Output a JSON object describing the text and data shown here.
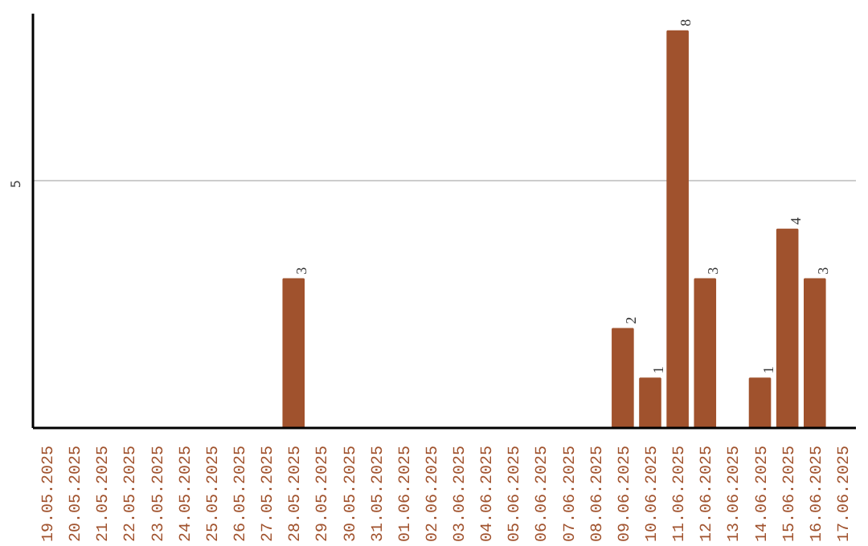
{
  "chart_data": {
    "type": "bar",
    "categories": [
      "19.05.2025",
      "20.05.2025",
      "21.05.2025",
      "22.05.2025",
      "23.05.2025",
      "24.05.2025",
      "25.05.2025",
      "26.05.2025",
      "27.05.2025",
      "28.05.2025",
      "29.05.2025",
      "30.05.2025",
      "31.05.2025",
      "01.06.2025",
      "02.06.2025",
      "03.06.2025",
      "04.06.2025",
      "05.06.2025",
      "06.06.2025",
      "07.06.2025",
      "08.06.2025",
      "09.06.2025",
      "10.06.2025",
      "11.06.2025",
      "12.06.2025",
      "13.06.2025",
      "14.06.2025",
      "15.06.2025",
      "16.06.2025",
      "17.06.2025"
    ],
    "values": [
      0,
      0,
      0,
      0,
      0,
      0,
      0,
      0,
      0,
      3,
      0,
      0,
      0,
      0,
      0,
      0,
      0,
      0,
      0,
      0,
      0,
      2,
      1,
      8,
      3,
      0,
      1,
      4,
      3,
      0
    ],
    "color": "#a0522d",
    "value_labels": [
      null,
      null,
      null,
      null,
      null,
      null,
      null,
      null,
      null,
      "3",
      null,
      null,
      null,
      null,
      null,
      null,
      null,
      null,
      null,
      null,
      null,
      "2",
      "1",
      "8",
      "3",
      null,
      "1",
      "4",
      "3",
      null
    ],
    "ylim": [
      0,
      8.35
    ],
    "yticks": [
      5
    ],
    "grid": "y"
  }
}
